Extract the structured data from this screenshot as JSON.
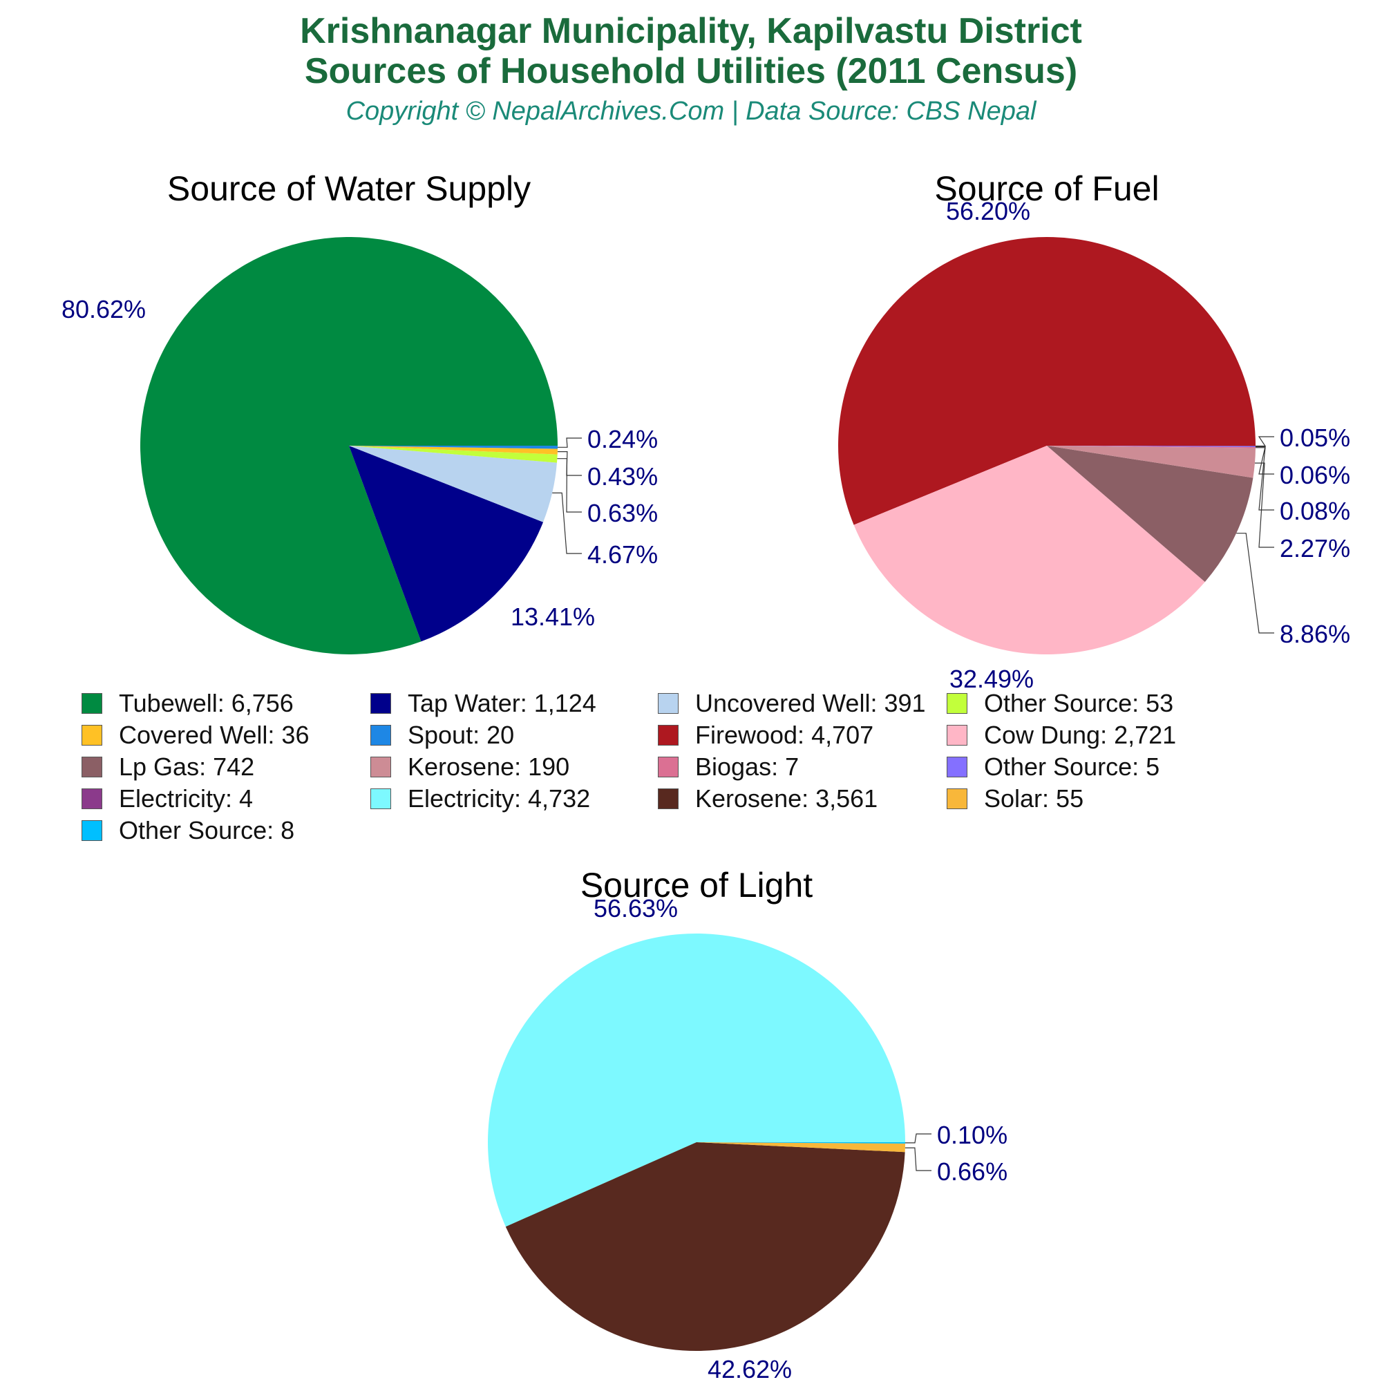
{
  "header": {
    "title_line1": "Krishnanagar Municipality, Kapilvastu District",
    "title_line2": "Sources of Household Utilities (2011 Census)",
    "subtitle": "Copyright © NepalArchives.Com | Data Source: CBS Nepal"
  },
  "chart_data": [
    {
      "type": "pie",
      "title": "Source of Water Supply",
      "categories": [
        "Tubewell",
        "Tap Water",
        "Uncovered Well",
        "Other Source",
        "Covered Well",
        "Spout"
      ],
      "values": [
        6756,
        1124,
        391,
        53,
        36,
        20
      ],
      "percent_labels": [
        "80.62%",
        "13.41%",
        "4.67%",
        "0.63%",
        "0.43%",
        "0.24%"
      ],
      "colors": [
        "#008a41",
        "#00008b",
        "#b8d3ef",
        "#c2ff3b",
        "#ffc125",
        "#1e87e5"
      ]
    },
    {
      "type": "pie",
      "title": "Source of Fuel",
      "categories": [
        "Firewood",
        "Cow Dung",
        "Lp Gas",
        "Kerosene",
        "Biogas",
        "Other Source",
        "Electricity"
      ],
      "values": [
        4707,
        2721,
        742,
        190,
        7,
        5,
        4
      ],
      "percent_labels": [
        "56.20%",
        "32.49%",
        "8.86%",
        "2.27%",
        "0.08%",
        "0.06%",
        "0.05%"
      ],
      "colors": [
        "#ae1820",
        "#ffb6c6",
        "#8b5f65",
        "#cd8c95",
        "#db7093",
        "#8470ff",
        "#8b3a8b"
      ]
    },
    {
      "type": "pie",
      "title": "Source of Light",
      "categories": [
        "Electricity",
        "Kerosene",
        "Solar",
        "Other Source"
      ],
      "values": [
        4732,
        3561,
        55,
        8
      ],
      "percent_labels": [
        "56.63%",
        "42.62%",
        "0.66%",
        "0.10%"
      ],
      "colors": [
        "#7df9ff",
        "#58291f",
        "#f8b73a",
        "#00bfff"
      ]
    }
  ],
  "legend": [
    {
      "label": "Tubewell: 6,756",
      "color": "#008a41"
    },
    {
      "label": "Tap Water: 1,124",
      "color": "#00008b"
    },
    {
      "label": "Uncovered Well: 391",
      "color": "#b8d3ef"
    },
    {
      "label": "Other Source: 53",
      "color": "#c2ff3b"
    },
    {
      "label": "Covered Well: 36",
      "color": "#ffc125"
    },
    {
      "label": "Spout: 20",
      "color": "#1e87e5"
    },
    {
      "label": "Firewood: 4,707",
      "color": "#ae1820"
    },
    {
      "label": "Cow Dung: 2,721",
      "color": "#ffb6c6"
    },
    {
      "label": "Lp Gas: 742",
      "color": "#8b5f65"
    },
    {
      "label": "Kerosene: 190",
      "color": "#cd8c95"
    },
    {
      "label": "Biogas: 7",
      "color": "#db7093"
    },
    {
      "label": "Other Source: 5",
      "color": "#8470ff"
    },
    {
      "label": "Electricity: 4",
      "color": "#8b3a8b"
    },
    {
      "label": "Electricity: 4,732",
      "color": "#7df9ff"
    },
    {
      "label": "Kerosene: 3,561",
      "color": "#58291f"
    },
    {
      "label": "Solar: 55",
      "color": "#f8b73a"
    },
    {
      "label": "Other Source: 8",
      "color": "#00bfff"
    }
  ],
  "label_color": "#000080"
}
